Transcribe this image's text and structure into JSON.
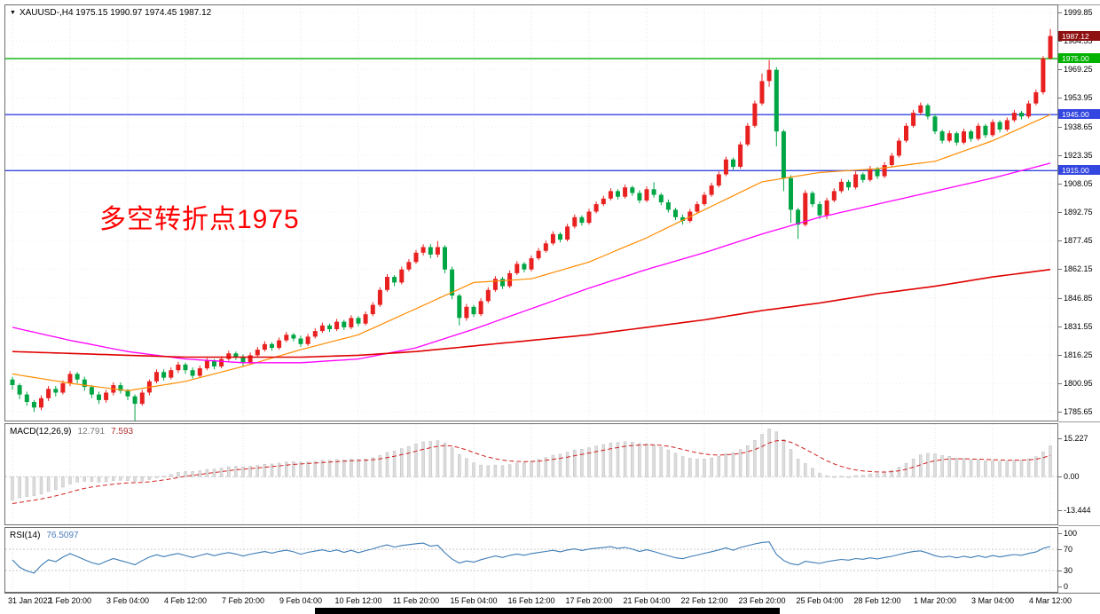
{
  "window": {
    "collapse_icon": "▼",
    "symbol_header": "XAUUSD-,H4 1975.15 1990.97 1974.45 1987.12"
  },
  "annotation": {
    "text": "多空转折点1975",
    "color": "#FF0000"
  },
  "colors": {
    "bull": "#E82020",
    "bear": "#00A544",
    "ma_fast": "#FF8C00",
    "ma_mid": "#FF00FF",
    "ma_slow": "#E00000",
    "level_green": "#00B200",
    "level_blue": "#3346E0",
    "current_tag_bg": "#8F1010",
    "macd_hist": "#DCDCDC",
    "macd_signal": "#D02020",
    "rsi_line": "#3C7BB5"
  },
  "chart_data": {
    "type": "candlestick",
    "symbol": "XAUUSD-",
    "timeframe": "H4",
    "title": "XAUUSD-,H4",
    "ohlc": {
      "open": "1975.15",
      "high": "1990.97",
      "low": "1974.45",
      "close": "1987.12"
    },
    "price_range": {
      "top": 2003.6,
      "bottom": 1781.0
    },
    "price_axis_labels": [
      "1999.85",
      "1984.55",
      "1969.25",
      "1953.95",
      "1938.65",
      "1923.35",
      "1908.05",
      "1892.75",
      "1877.45",
      "1862.15",
      "1846.85",
      "1831.55",
      "1816.25",
      "1800.95",
      "1785.65"
    ],
    "time_axis_labels": [
      "31 Jan 2022",
      "1 Feb 20:00",
      "3 Feb 04:00",
      "4 Feb 12:00",
      "7 Feb 20:00",
      "9 Feb 04:00",
      "10 Feb 12:00",
      "11 Feb 20:00",
      "15 Feb 04:00",
      "16 Feb 12:00",
      "17 Feb 20:00",
      "21 Feb 04:00",
      "22 Feb 12:00",
      "23 Feb 20:00",
      "25 Feb 04:00",
      "28 Feb 12:00",
      "1 Mar 20:00",
      "3 Mar 04:00",
      "4 Mar 12:00"
    ],
    "label_bar_step": 8,
    "levels": [
      {
        "price": 1975.0,
        "label": "1975.00",
        "color_key": "level_green"
      },
      {
        "price": 1945.0,
        "label": "1945.00",
        "color_key": "level_blue"
      },
      {
        "price": 1915.0,
        "label": "1915.00",
        "color_key": "level_blue"
      }
    ],
    "current_price": {
      "price": 1987.12,
      "label": "1987.12"
    },
    "candles": [
      [
        1803,
        1804.5,
        1797.5,
        1800
      ],
      [
        1800,
        1801,
        1792.5,
        1795
      ],
      [
        1795,
        1796.5,
        1789,
        1791
      ],
      [
        1791,
        1792,
        1785.5,
        1788
      ],
      [
        1788,
        1794.5,
        1786.5,
        1793
      ],
      [
        1793,
        1799.5,
        1791.5,
        1798
      ],
      [
        1798,
        1799.5,
        1794,
        1796
      ],
      [
        1796,
        1802.5,
        1795,
        1801
      ],
      [
        1801,
        1807.5,
        1799.5,
        1806
      ],
      [
        1806,
        1807,
        1801,
        1803
      ],
      [
        1803,
        1804.5,
        1797,
        1799
      ],
      [
        1799,
        1800,
        1793,
        1795
      ],
      [
        1795,
        1796.5,
        1790,
        1792
      ],
      [
        1792,
        1797.5,
        1790.5,
        1796
      ],
      [
        1796,
        1801.5,
        1794.5,
        1800
      ],
      [
        1800,
        1801.5,
        1795.5,
        1797
      ],
      [
        1797,
        1798,
        1792,
        1794
      ],
      [
        1794,
        1795,
        1779,
        1790
      ],
      [
        1790,
        1797.5,
        1789,
        1796
      ],
      [
        1796,
        1803,
        1794.5,
        1802
      ],
      [
        1802,
        1808.5,
        1801,
        1807
      ],
      [
        1807,
        1808.5,
        1802.5,
        1804
      ],
      [
        1804,
        1809.5,
        1803,
        1808
      ],
      [
        1808,
        1812.5,
        1806.5,
        1811
      ],
      [
        1811,
        1812,
        1806,
        1808
      ],
      [
        1808,
        1809.5,
        1803.5,
        1805
      ],
      [
        1805,
        1810.5,
        1804,
        1809
      ],
      [
        1809,
        1814.5,
        1808,
        1813
      ],
      [
        1813,
        1814,
        1808.5,
        1810
      ],
      [
        1810,
        1815.5,
        1809,
        1814
      ],
      [
        1814,
        1818.5,
        1813,
        1817
      ],
      [
        1817,
        1818,
        1813.5,
        1815
      ],
      [
        1815,
        1816.5,
        1810,
        1812
      ],
      [
        1812,
        1817.5,
        1811,
        1816
      ],
      [
        1816,
        1820.5,
        1815,
        1819
      ],
      [
        1819,
        1823.5,
        1818,
        1822
      ],
      [
        1822,
        1823,
        1818.5,
        1820
      ],
      [
        1820,
        1825.5,
        1819,
        1824
      ],
      [
        1824,
        1828.5,
        1823,
        1827
      ],
      [
        1827,
        1828,
        1823.5,
        1825
      ],
      [
        1825,
        1826.5,
        1820.5,
        1822
      ],
      [
        1822,
        1827.5,
        1821,
        1826
      ],
      [
        1826,
        1830.5,
        1825,
        1829
      ],
      [
        1829,
        1833.5,
        1828,
        1832
      ],
      [
        1832,
        1833,
        1828.5,
        1830
      ],
      [
        1830,
        1835.5,
        1829,
        1834
      ],
      [
        1834,
        1835,
        1829.5,
        1831
      ],
      [
        1831,
        1837.5,
        1830,
        1836
      ],
      [
        1836,
        1837,
        1831.5,
        1833
      ],
      [
        1833,
        1839.5,
        1832,
        1838
      ],
      [
        1838,
        1844.5,
        1837,
        1843
      ],
      [
        1843,
        1852.5,
        1842,
        1851
      ],
      [
        1851,
        1859.5,
        1850,
        1858
      ],
      [
        1858,
        1859,
        1853,
        1855
      ],
      [
        1855,
        1863.5,
        1854,
        1862
      ],
      [
        1862,
        1867.5,
        1861,
        1866
      ],
      [
        1866,
        1872.5,
        1865,
        1871
      ],
      [
        1871,
        1875.5,
        1869.5,
        1874
      ],
      [
        1874,
        1875.5,
        1868,
        1870
      ],
      [
        1870,
        1877.2,
        1868.5,
        1874
      ],
      [
        1874,
        1875,
        1860,
        1862
      ],
      [
        1862,
        1863.5,
        1846,
        1848
      ],
      [
        1848,
        1849,
        1832,
        1836
      ],
      [
        1836,
        1843.5,
        1834.5,
        1842
      ],
      [
        1842,
        1843,
        1836.5,
        1838
      ],
      [
        1838,
        1846.5,
        1837,
        1845
      ],
      [
        1845,
        1852.5,
        1844,
        1851
      ],
      [
        1851,
        1858.5,
        1850,
        1857
      ],
      [
        1857,
        1858,
        1851.5,
        1853
      ],
      [
        1853,
        1861.5,
        1852,
        1860
      ],
      [
        1860,
        1866.5,
        1859,
        1865
      ],
      [
        1865,
        1866,
        1860.5,
        1862
      ],
      [
        1862,
        1869.5,
        1861,
        1868
      ],
      [
        1868,
        1873.5,
        1867,
        1872
      ],
      [
        1872,
        1877.5,
        1871,
        1876
      ],
      [
        1876,
        1882.5,
        1875,
        1881
      ],
      [
        1881,
        1882,
        1876.5,
        1878
      ],
      [
        1878,
        1886.5,
        1877,
        1885
      ],
      [
        1885,
        1891.5,
        1884,
        1890
      ],
      [
        1890,
        1891,
        1885.5,
        1887
      ],
      [
        1887,
        1894.5,
        1886,
        1893
      ],
      [
        1893,
        1898.5,
        1892,
        1897
      ],
      [
        1897,
        1901.5,
        1896,
        1900
      ],
      [
        1900,
        1905.5,
        1899,
        1904
      ],
      [
        1904,
        1905,
        1899.5,
        1901
      ],
      [
        1901,
        1907.5,
        1900,
        1906
      ],
      [
        1906,
        1907,
        1901.5,
        1903
      ],
      [
        1903,
        1904.5,
        1897.5,
        1899
      ],
      [
        1899,
        1906.5,
        1898,
        1905
      ],
      [
        1905,
        1908.8,
        1900.5,
        1902
      ],
      [
        1902,
        1903,
        1896.5,
        1898
      ],
      [
        1898,
        1899.5,
        1892.5,
        1894
      ],
      [
        1894,
        1895,
        1888.5,
        1890
      ],
      [
        1890,
        1891.5,
        1886,
        1888
      ],
      [
        1888,
        1894.5,
        1887,
        1893
      ],
      [
        1893,
        1898.5,
        1892,
        1897
      ],
      [
        1897,
        1903.5,
        1896,
        1902
      ],
      [
        1902,
        1908.5,
        1901,
        1907
      ],
      [
        1907,
        1914.5,
        1906,
        1913
      ],
      [
        1913,
        1922.5,
        1912,
        1921
      ],
      [
        1921,
        1922,
        1915.5,
        1917
      ],
      [
        1917,
        1930.5,
        1916,
        1929
      ],
      [
        1929,
        1940.5,
        1928,
        1939
      ],
      [
        1939,
        1952.5,
        1938,
        1951
      ],
      [
        1951,
        1967,
        1950,
        1963
      ],
      [
        1963,
        1974.3,
        1960,
        1969
      ],
      [
        1969,
        1970.5,
        1928,
        1936
      ],
      [
        1936,
        1937,
        1904,
        1911
      ],
      [
        1911,
        1912.5,
        1887,
        1894
      ],
      [
        1894,
        1895,
        1878.4,
        1886
      ],
      [
        1886,
        1904.5,
        1885,
        1903
      ],
      [
        1903,
        1904,
        1895.5,
        1897
      ],
      [
        1897,
        1898.5,
        1889,
        1891
      ],
      [
        1891,
        1900.5,
        1889,
        1899
      ],
      [
        1899,
        1905.5,
        1898,
        1904
      ],
      [
        1904,
        1910.5,
        1903,
        1909
      ],
      [
        1909,
        1910,
        1904.5,
        1906
      ],
      [
        1906,
        1914.5,
        1905,
        1913
      ],
      [
        1913,
        1914,
        1908.5,
        1910
      ],
      [
        1910,
        1917.5,
        1909,
        1916
      ],
      [
        1916,
        1917,
        1910.5,
        1912
      ],
      [
        1912,
        1919.5,
        1911,
        1918
      ],
      [
        1918,
        1924.5,
        1917,
        1923
      ],
      [
        1923,
        1932.5,
        1922,
        1931
      ],
      [
        1931,
        1940.5,
        1930,
        1939
      ],
      [
        1939,
        1947.5,
        1938,
        1946
      ],
      [
        1946,
        1951.5,
        1945,
        1950
      ],
      [
        1950,
        1951,
        1942.5,
        1944
      ],
      [
        1944,
        1945.5,
        1934.5,
        1936
      ],
      [
        1936,
        1937,
        1929.5,
        1931
      ],
      [
        1931,
        1936.5,
        1930,
        1935
      ],
      [
        1935,
        1936,
        1928.5,
        1930
      ],
      [
        1930,
        1937.5,
        1929,
        1936
      ],
      [
        1936,
        1937,
        1930.5,
        1932
      ],
      [
        1932,
        1940.5,
        1931,
        1939
      ],
      [
        1939,
        1940,
        1932.5,
        1934
      ],
      [
        1934,
        1942.5,
        1933,
        1941
      ],
      [
        1941,
        1942,
        1935.5,
        1937
      ],
      [
        1937,
        1943.5,
        1936,
        1942
      ],
      [
        1942,
        1947.5,
        1941,
        1946
      ],
      [
        1946,
        1947,
        1942.5,
        1944
      ],
      [
        1944,
        1952.5,
        1943,
        1951
      ],
      [
        1951,
        1958.5,
        1950,
        1957
      ],
      [
        1957,
        1976.4,
        1955.8,
        1975.15
      ],
      [
        1975.15,
        1990.97,
        1974.45,
        1987.12
      ]
    ],
    "ma_lines": [
      {
        "name": "ma-fast-orange",
        "color_key": "ma_fast",
        "width": 1.2,
        "sample_step": 8,
        "samples": [
          1806,
          1801,
          1797,
          1802,
          1810,
          1819,
          1827,
          1841,
          1855,
          1857,
          1866,
          1879,
          1894,
          1909,
          1914,
          1916,
          1920,
          1931,
          1945
        ]
      },
      {
        "name": "ma-mid-magenta",
        "color_key": "ma_mid",
        "width": 1.3,
        "sample_step": 8,
        "samples": [
          1831,
          1824,
          1818,
          1814,
          1812,
          1812,
          1814,
          1820,
          1830,
          1841,
          1852,
          1862,
          1871,
          1881,
          1890,
          1897,
          1904,
          1911,
          1919
        ]
      },
      {
        "name": "ma-slow-red",
        "color_key": "ma_slow",
        "width": 1.6,
        "sample_step": 8,
        "samples": [
          1818,
          1817,
          1816,
          1815,
          1815,
          1815,
          1816,
          1818,
          1821,
          1824,
          1827,
          1831,
          1835,
          1840,
          1844,
          1849,
          1853,
          1858,
          1862
        ]
      }
    ],
    "macd": {
      "label": "MACD(12,26,9)",
      "value_main": "12.791",
      "value_signal": "7.593",
      "axis_labels": [
        "15.227",
        "0.00",
        "-13.444"
      ],
      "axis_values": [
        15.227,
        0,
        -13.444
      ],
      "range": [
        21,
        -19
      ],
      "seed": {
        "ema12": 1790,
        "ema26": 1801,
        "signal": -11
      }
    },
    "rsi": {
      "label": "RSI(14)",
      "value": "76.5097",
      "axis_labels": [
        "100",
        "70",
        "30",
        "0"
      ],
      "axis_values": [
        100,
        70,
        30,
        0
      ],
      "levels": [
        70,
        30
      ],
      "period": 14
    }
  }
}
